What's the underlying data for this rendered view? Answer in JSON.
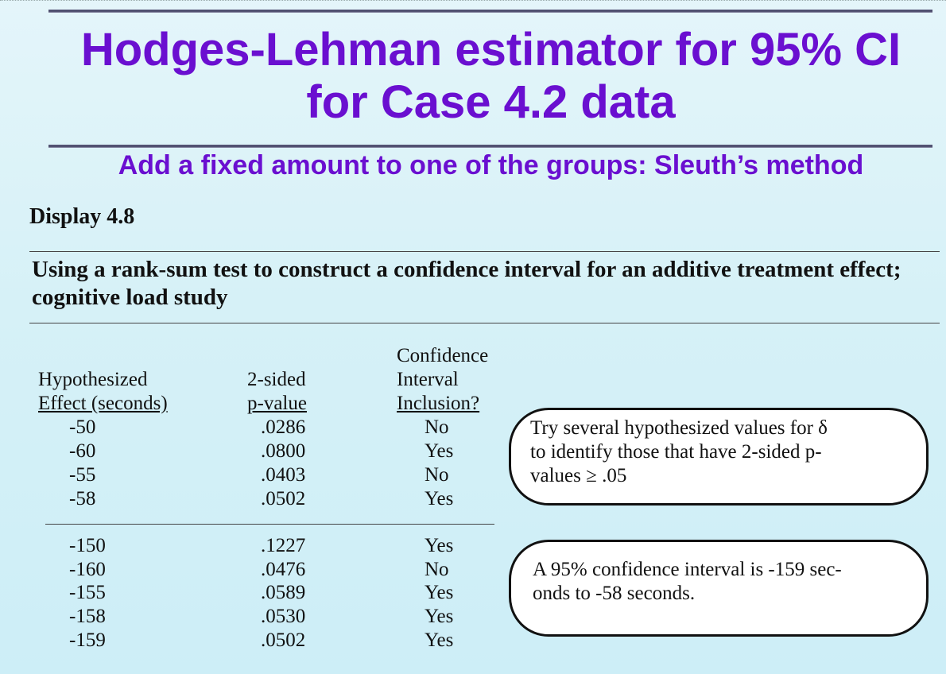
{
  "title": "Hodges-Lehman estimator for 95% CI for Case 4.2 data",
  "subtitle": "Add a fixed amount to one of the groups: Sleuth’s method",
  "display_label": "Display 4.8",
  "caption": "Using a rank-sum test to construct a confidence interval for an additive treatment effect; cognitive load study",
  "table": {
    "headers": {
      "effect": [
        "Hypothesized",
        "Effect (seconds)"
      ],
      "pvalue": [
        "2-sided",
        "p-value"
      ],
      "inclusion": [
        "Confidence",
        "Interval",
        "Inclusion?"
      ]
    },
    "group1": [
      {
        "effect": "-50",
        "p": ".0286",
        "incl": "No"
      },
      {
        "effect": "-60",
        "p": ".0800",
        "incl": "Yes"
      },
      {
        "effect": "-55",
        "p": ".0403",
        "incl": "No"
      },
      {
        "effect": "-58",
        "p": ".0502",
        "incl": "Yes"
      }
    ],
    "group2": [
      {
        "effect": "-150",
        "p": ".1227",
        "incl": "Yes"
      },
      {
        "effect": "-160",
        "p": ".0476",
        "incl": "No"
      },
      {
        "effect": "-155",
        "p": ".0589",
        "incl": "Yes"
      },
      {
        "effect": "-158",
        "p": ".0530",
        "incl": "Yes"
      },
      {
        "effect": "-159",
        "p": ".0502",
        "incl": "Yes"
      }
    ]
  },
  "bubble1": {
    "line1": "Try several hypothesized values for δ",
    "line2": "to identify those that have 2-sided p-",
    "line3": "values ≥ .05"
  },
  "bubble2": {
    "line1": "A 95% confidence interval is -159 sec-",
    "line2": "onds to -58 seconds."
  }
}
